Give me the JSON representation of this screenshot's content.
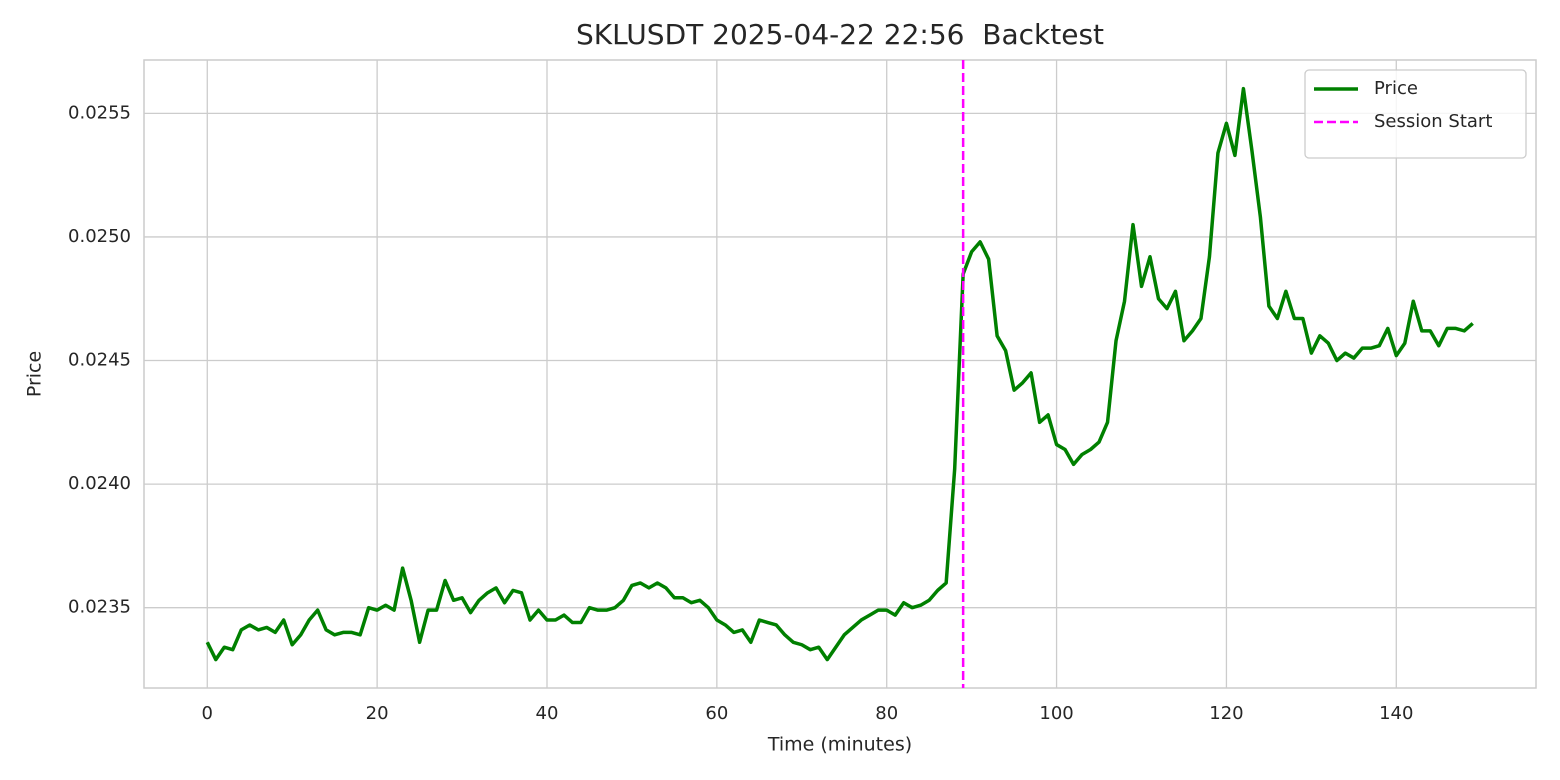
{
  "chart_data": {
    "type": "line",
    "title": "SKLUSDT 2025-04-22 22:56  Backtest",
    "xlabel": "Time (minutes)",
    "ylabel": "Price",
    "x": [
      0,
      1,
      2,
      3,
      4,
      5,
      6,
      7,
      8,
      9,
      10,
      11,
      12,
      13,
      14,
      15,
      16,
      17,
      18,
      19,
      20,
      21,
      22,
      23,
      24,
      25,
      26,
      27,
      28,
      29,
      30,
      31,
      32,
      33,
      34,
      35,
      36,
      37,
      38,
      39,
      40,
      41,
      42,
      43,
      44,
      45,
      46,
      47,
      48,
      49,
      50,
      51,
      52,
      53,
      54,
      55,
      56,
      57,
      58,
      59,
      60,
      61,
      62,
      63,
      64,
      65,
      66,
      67,
      68,
      69,
      70,
      71,
      72,
      73,
      74,
      75,
      76,
      77,
      78,
      79,
      80,
      81,
      82,
      83,
      84,
      85,
      86,
      87,
      88,
      89,
      90,
      91,
      92,
      93,
      94,
      95,
      96,
      97,
      98,
      99,
      100,
      101,
      102,
      103,
      104,
      105,
      106,
      107,
      108,
      109,
      110,
      111,
      112,
      113,
      114,
      115,
      116,
      117,
      118,
      119,
      120,
      121,
      122,
      123,
      124,
      125,
      126,
      127,
      128,
      129,
      130,
      131,
      132,
      133,
      134,
      135,
      136,
      137,
      138,
      139,
      140,
      141,
      142,
      143,
      144,
      145,
      146,
      147,
      148,
      149
    ],
    "series": [
      {
        "name": "Price",
        "color": "#008000",
        "values": [
          0.02336,
          0.02329,
          0.02334,
          0.02333,
          0.02341,
          0.02343,
          0.02341,
          0.02342,
          0.0234,
          0.02345,
          0.02335,
          0.02339,
          0.02345,
          0.02349,
          0.02341,
          0.02339,
          0.0234,
          0.0234,
          0.02339,
          0.0235,
          0.02349,
          0.02351,
          0.02349,
          0.02366,
          0.02353,
          0.02336,
          0.02349,
          0.02349,
          0.02361,
          0.02353,
          0.02354,
          0.02348,
          0.02353,
          0.02356,
          0.02358,
          0.02352,
          0.02357,
          0.02356,
          0.02345,
          0.02349,
          0.02345,
          0.02345,
          0.02347,
          0.02344,
          0.02344,
          0.0235,
          0.02349,
          0.02349,
          0.0235,
          0.02353,
          0.02359,
          0.0236,
          0.02358,
          0.0236,
          0.02358,
          0.02354,
          0.02354,
          0.02352,
          0.02353,
          0.0235,
          0.02345,
          0.02343,
          0.0234,
          0.02341,
          0.02336,
          0.02345,
          0.02344,
          0.02343,
          0.02339,
          0.02336,
          0.02335,
          0.02333,
          0.02334,
          0.02329,
          0.02334,
          0.02339,
          0.02342,
          0.02345,
          0.02347,
          0.02349,
          0.02349,
          0.02347,
          0.02352,
          0.0235,
          0.02351,
          0.02353,
          0.02357,
          0.0236,
          0.02406,
          0.02485,
          0.02494,
          0.02498,
          0.02491,
          0.0246,
          0.02454,
          0.02438,
          0.02441,
          0.02445,
          0.02425,
          0.02428,
          0.02416,
          0.02414,
          0.02408,
          0.02412,
          0.02414,
          0.02417,
          0.02425,
          0.02458,
          0.02474,
          0.02505,
          0.0248,
          0.02492,
          0.02475,
          0.02471,
          0.02478,
          0.02458,
          0.02462,
          0.02467,
          0.02492,
          0.02534,
          0.02546,
          0.02533,
          0.0256,
          0.02535,
          0.02508,
          0.02472,
          0.02467,
          0.02478,
          0.02467,
          0.02467,
          0.02453,
          0.0246,
          0.02457,
          0.0245,
          0.02453,
          0.02451,
          0.02455,
          0.02455,
          0.02456,
          0.02463,
          0.02452,
          0.02457,
          0.02474,
          0.02462,
          0.02462,
          0.02456,
          0.02463,
          0.02463,
          0.02462,
          0.02465
        ]
      }
    ],
    "vlines": [
      {
        "name": "Session Start",
        "color": "#ff00ff",
        "x": 89
      }
    ],
    "xlim": [
      -7.45,
      156.45
    ],
    "ylim": [
      0.023175,
      0.025716
    ],
    "xticks": [
      0,
      20,
      40,
      60,
      80,
      100,
      120,
      140
    ],
    "yticks": [
      0.0235,
      {
        "value": 0.024,
        "label": "0.0240"
      },
      0.0245,
      {
        "value": 0.025,
        "label": "0.0250"
      },
      0.0255
    ],
    "grid": true,
    "legend": "upper right"
  }
}
